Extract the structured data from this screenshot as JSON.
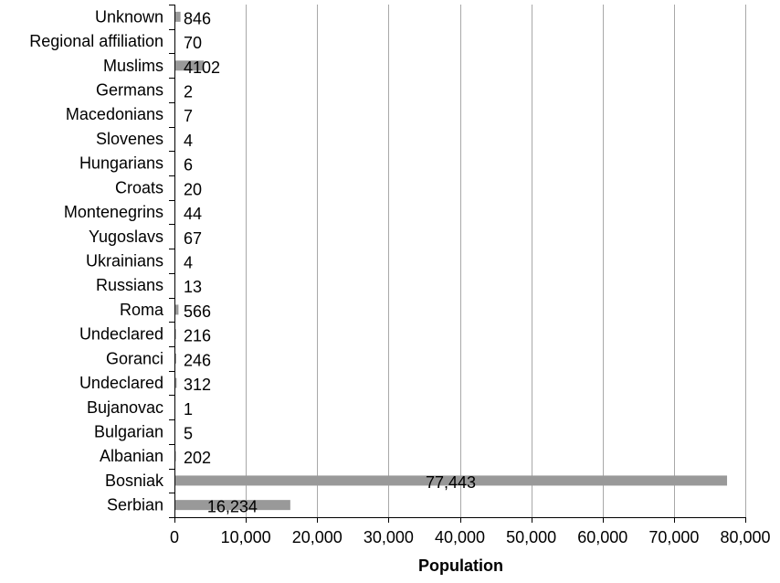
{
  "chart_data": {
    "type": "bar",
    "orientation": "horizontal",
    "title": "",
    "xlabel": "Population",
    "ylabel": "",
    "xlim": [
      0,
      80000
    ],
    "x_ticks": [
      {
        "value": 0,
        "label": "0"
      },
      {
        "value": 10000,
        "label": "10,000"
      },
      {
        "value": 20000,
        "label": "20,000"
      },
      {
        "value": 30000,
        "label": "30,000"
      },
      {
        "value": 40000,
        "label": "40,000"
      },
      {
        "value": 50000,
        "label": "50,000"
      },
      {
        "value": 60000,
        "label": "60,000"
      },
      {
        "value": 70000,
        "label": "70,000"
      },
      {
        "value": 80000,
        "label": "80,000"
      }
    ],
    "grid": "vertical",
    "legend": "none",
    "bar_color": "#999999",
    "categories": [
      "Unknown",
      "Regional affiliation",
      "Muslims",
      "Germans",
      "Macedonians",
      "Slovenes",
      "Hungarians",
      "Croats",
      "Montenegrins",
      "Yugoslavs",
      "Ukrainians",
      "Russians",
      "Roma",
      "Undeclared",
      "Goranci",
      "Undeclared",
      "Bujanovac",
      "Bulgarian",
      "Albanian",
      "Bosniak",
      "Serbian"
    ],
    "values": [
      846,
      70,
      4102,
      2,
      7,
      4,
      6,
      20,
      44,
      67,
      4,
      13,
      566,
      216,
      246,
      312,
      1,
      5,
      202,
      77443,
      16234
    ],
    "data_labels": [
      "846",
      "70",
      "4102",
      "2",
      "7",
      "4",
      "6",
      "20",
      "44",
      "67",
      "4",
      "13",
      "566",
      "216",
      "246",
      "312",
      "1",
      "5",
      "202",
      "77,443",
      "16,234"
    ]
  }
}
